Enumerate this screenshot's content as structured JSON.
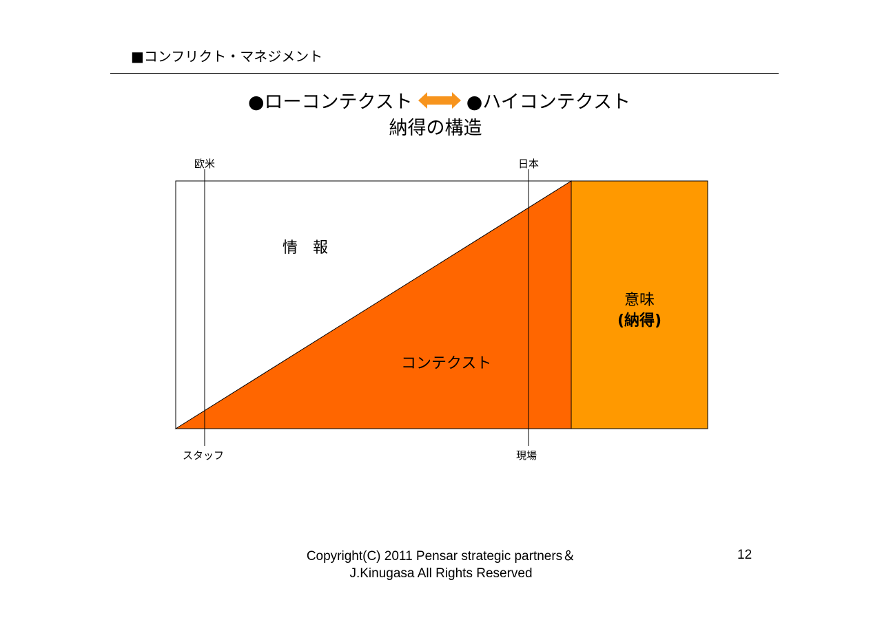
{
  "header": {
    "title": "■コンフリクト・マネジメント"
  },
  "heading": {
    "left": "●ローコンテクスト",
    "right": "●ハイコンテクスト",
    "subtitle": "納得の構造"
  },
  "diagram": {
    "top_left_label": "欧米",
    "top_right_label": "日本",
    "bottom_left_label": "スタッフ",
    "bottom_right_label": "現場",
    "information_label": "情　報",
    "context_label": "コンテクスト",
    "meaning_label": "意味",
    "meaning_sub_label": "(納得)",
    "colors": {
      "context": "#FF6600",
      "meaning": "#FF9900",
      "arrow": "#F7941D"
    }
  },
  "footer": {
    "copyright": "Copyright(C) 2011  Pensar strategic partners＆J.Kinugasa All Rights Reserved",
    "page_number": "12"
  }
}
